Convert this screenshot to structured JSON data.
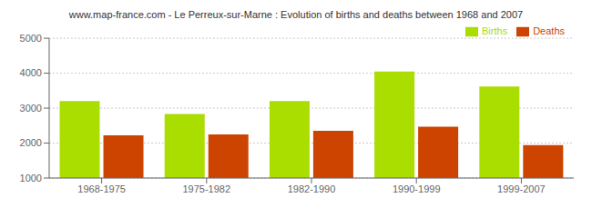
{
  "chart_data": {
    "type": "bar",
    "title": "www.map-france.com - Le Perreux-sur-Marne : Evolution of births and deaths between 1968 and 2007",
    "categories": [
      "1968-1975",
      "1975-1982",
      "1982-1990",
      "1990-1999",
      "1999-2007"
    ],
    "series": [
      {
        "name": "Births",
        "color": "#aadd00",
        "values": [
          3200,
          2830,
          3200,
          4050,
          3620
        ]
      },
      {
        "name": "Deaths",
        "color": "#cc4400",
        "values": [
          2220,
          2250,
          2350,
          2470,
          1940
        ]
      }
    ],
    "ylim": [
      1000,
      5000
    ],
    "yticks": [
      1000,
      2000,
      3000,
      4000,
      5000
    ],
    "grid": true,
    "legend": "upper right"
  }
}
